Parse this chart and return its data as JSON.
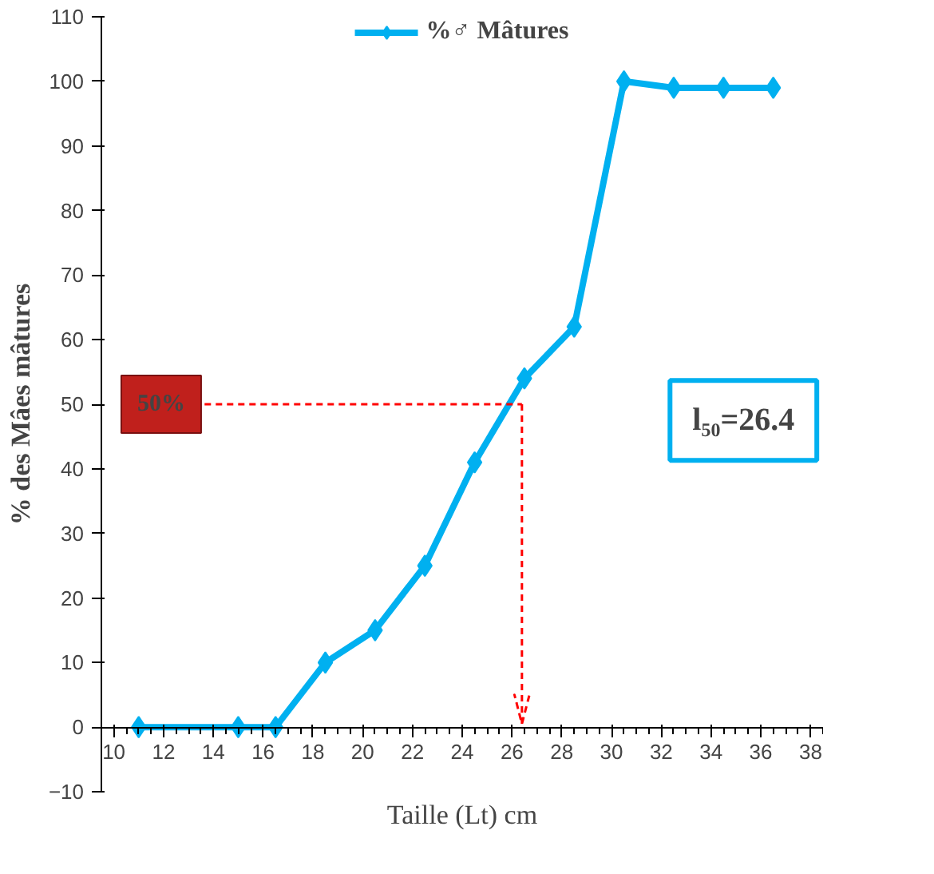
{
  "chart_data": {
    "type": "line",
    "xlabel": "Taille (Lt) cm",
    "ylabel": "% des Mâes mâtures",
    "x": [
      11,
      15,
      16.5,
      18.5,
      20.5,
      22.5,
      24.5,
      26.5,
      28.5,
      30.5,
      32.5,
      34.5,
      36.5
    ],
    "series": [
      {
        "name": "%♂ Mâtures",
        "color": "#00b0f0",
        "values": [
          0,
          0,
          0,
          10,
          15,
          25,
          41,
          54,
          62,
          100,
          99,
          99,
          99
        ]
      }
    ],
    "xlim": [
      9.5,
      38.5
    ],
    "xticks": [
      10,
      12,
      14,
      16,
      18,
      20,
      22,
      24,
      26,
      28,
      30,
      32,
      34,
      36,
      38
    ],
    "ylim": [
      -10,
      110
    ],
    "yticks": [
      -10,
      0,
      10,
      20,
      30,
      40,
      50,
      60,
      70,
      80,
      90,
      100,
      110
    ],
    "ref_lines": [
      {
        "axis": "y",
        "value": 50,
        "label": "50%",
        "color": "#ff0000",
        "line_style": "dashed"
      },
      {
        "axis": "x",
        "value": 26.4,
        "color": "#ff0000",
        "line_style": "dashed"
      }
    ],
    "annotations": [
      "l₅₀=26.4"
    ],
    "grid": false,
    "legend": "top",
    "marker": "diamond",
    "line_style": "solid"
  }
}
